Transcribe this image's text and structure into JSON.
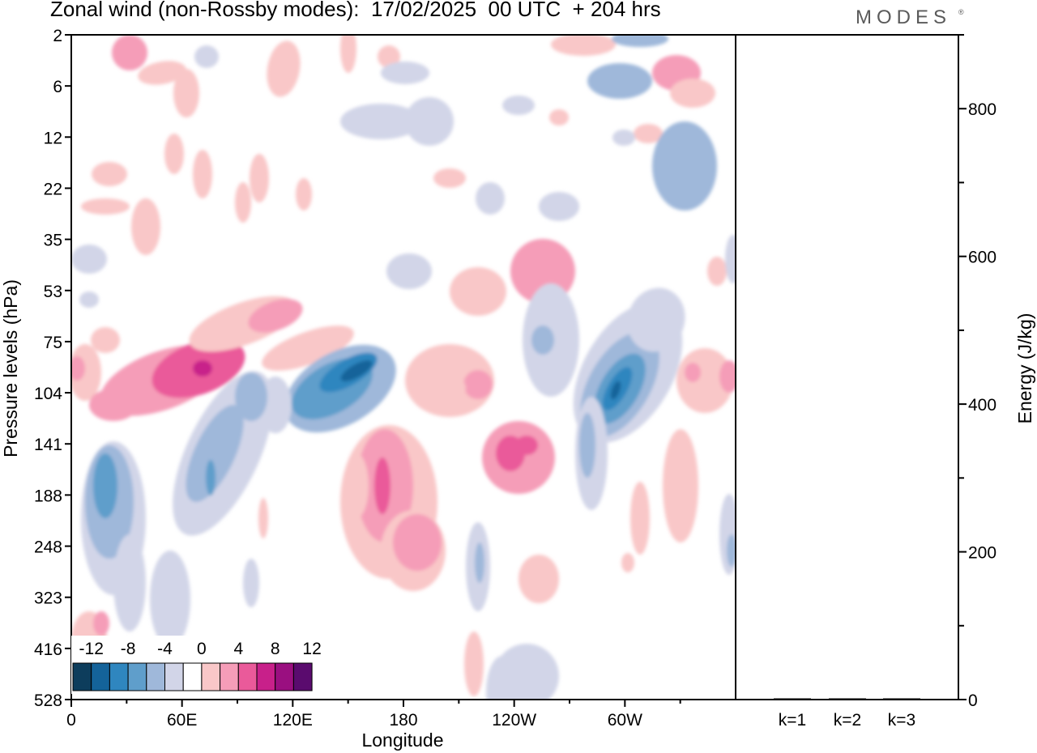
{
  "title": "Zonal wind (non-Rossby modes):  17/02/2025  00 UTC  + 204 hrs",
  "brand": "MODES",
  "brand_mark": "®",
  "chart_data": [
    {
      "type": "heatmap",
      "title": "Zonal wind (non-Rossby modes):  17/02/2025  00 UTC  + 204 hrs",
      "xlabel": "Longitude",
      "ylabel": "Pressure levels (hPa)",
      "x_ticks": [
        "0",
        "60E",
        "120E",
        "180",
        "120W",
        "60W"
      ],
      "x_tick_positions_deg": [
        0,
        60,
        120,
        180,
        240,
        300
      ],
      "xlim": [
        0,
        360
      ],
      "y_ticks": [
        "2",
        "6",
        "12",
        "22",
        "35",
        "53",
        "75",
        "104",
        "141",
        "188",
        "248",
        "323",
        "416",
        "528"
      ],
      "colorbar": {
        "labels": [
          "-12",
          "-8",
          "-4",
          "0",
          "4",
          "8",
          "12"
        ],
        "levels": [
          -14,
          -12,
          -10,
          -8,
          -6,
          -4,
          -2,
          2,
          4,
          6,
          8,
          10,
          12,
          14
        ],
        "colors": [
          "#0d3d5c",
          "#14639a",
          "#2f86bf",
          "#5f9ecb",
          "#9fb8da",
          "#d2d5e8",
          "#ffffff",
          "#f9c7c8",
          "#f59db8",
          "#ea5a9a",
          "#c8208a",
          "#9a0f80",
          "#5a0b6e"
        ]
      },
      "features": [
        {
          "kind": "negative",
          "value": -12,
          "lon": 148,
          "level": 92,
          "note": "jet core over 120E-180"
        },
        {
          "kind": "negative",
          "value": -12,
          "lon": 296,
          "level": 104,
          "note": "jet core near 60W"
        },
        {
          "kind": "negative",
          "value": -8,
          "lon": 22,
          "level": 188,
          "note": "tropospheric minimum near 20E"
        },
        {
          "kind": "negative",
          "value": -6,
          "lon": 75,
          "level": 160,
          "note": "band near 75E"
        },
        {
          "kind": "positive",
          "value": 10,
          "lon": 66,
          "level": 90,
          "note": "maximum near 60E"
        },
        {
          "kind": "positive",
          "value": 10,
          "lon": 237,
          "level": 150,
          "note": "maximum near 120W"
        },
        {
          "kind": "positive",
          "value": 10,
          "lon": 170,
          "level": 180,
          "note": "column near 180"
        },
        {
          "kind": "positive",
          "value": 8,
          "lon": 185,
          "level": 250,
          "note": "lower maximum east of 180"
        }
      ]
    },
    {
      "type": "bar",
      "categories": [
        "k=1",
        "k=2",
        "k=3"
      ],
      "values": [
        1,
        1,
        1
      ],
      "ylabel": "Energy (J/kg)",
      "ylim": [
        0,
        900
      ],
      "y_ticks": [
        "0",
        "200",
        "400",
        "600",
        "800"
      ]
    }
  ]
}
